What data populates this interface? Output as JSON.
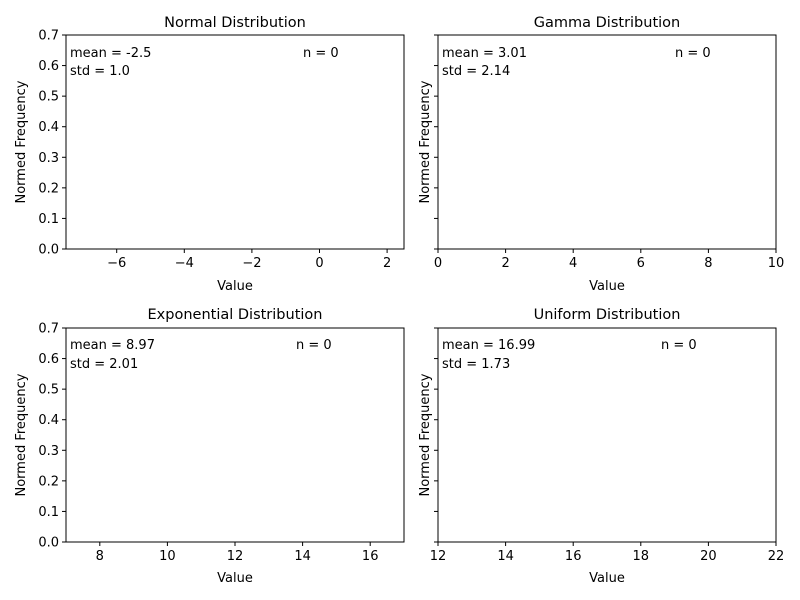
{
  "chart_data": [
    {
      "type": "histogram",
      "title": "Normal Distribution",
      "xlabel": "Value",
      "ylabel": "Normed Frequency",
      "xlim": [
        -7.5,
        2.5
      ],
      "ylim": [
        0,
        0.7
      ],
      "xticks": [
        -6,
        -4,
        -2,
        0,
        2
      ],
      "xtick_labels": [
        "−6",
        "−4",
        "−2",
        "0",
        "2"
      ],
      "yticks": [
        0,
        0.1,
        0.2,
        0.3,
        0.4,
        0.5,
        0.6,
        0.7
      ],
      "ytick_labels": [
        "0.0",
        "0.1",
        "0.2",
        "0.3",
        "0.4",
        "0.5",
        "0.6",
        "0.7"
      ],
      "show_ytick_labels": true,
      "values": [],
      "annotations": {
        "mean": "mean = -2.5",
        "std": "std = 1.0",
        "n": "n = 0"
      }
    },
    {
      "type": "histogram",
      "title": "Gamma Distribution",
      "xlabel": "Value",
      "ylabel": "Normed Frequency",
      "xlim": [
        0,
        10
      ],
      "ylim": [
        0,
        0.7
      ],
      "xticks": [
        0,
        2,
        4,
        6,
        8,
        10
      ],
      "xtick_labels": [
        "0",
        "2",
        "4",
        "6",
        "8",
        "10"
      ],
      "yticks": [
        0,
        0.1,
        0.2,
        0.3,
        0.4,
        0.5,
        0.6,
        0.7
      ],
      "ytick_labels": [],
      "show_ytick_labels": false,
      "values": [],
      "annotations": {
        "mean": "mean = 3.01",
        "std": "std = 2.14",
        "n": "n = 0"
      }
    },
    {
      "type": "histogram",
      "title": "Exponential Distribution",
      "xlabel": "Value",
      "ylabel": "Normed Frequency",
      "xlim": [
        7,
        17
      ],
      "ylim": [
        0,
        0.7
      ],
      "xticks": [
        8,
        10,
        12,
        14,
        16
      ],
      "xtick_labels": [
        "8",
        "10",
        "12",
        "14",
        "16"
      ],
      "yticks": [
        0,
        0.1,
        0.2,
        0.3,
        0.4,
        0.5,
        0.6,
        0.7
      ],
      "ytick_labels": [
        "0.0",
        "0.1",
        "0.2",
        "0.3",
        "0.4",
        "0.5",
        "0.6",
        "0.7"
      ],
      "show_ytick_labels": true,
      "values": [],
      "annotations": {
        "mean": "mean = 8.97",
        "std": "std = 2.01",
        "n": "n = 0"
      }
    },
    {
      "type": "histogram",
      "title": "Uniform Distribution",
      "xlabel": "Value",
      "ylabel": "Normed Frequency",
      "xlim": [
        12,
        22
      ],
      "ylim": [
        0,
        0.7
      ],
      "xticks": [
        12,
        14,
        16,
        18,
        20,
        22
      ],
      "xtick_labels": [
        "12",
        "14",
        "16",
        "18",
        "20",
        "22"
      ],
      "yticks": [
        0,
        0.1,
        0.2,
        0.3,
        0.4,
        0.5,
        0.6,
        0.7
      ],
      "ytick_labels": [],
      "show_ytick_labels": false,
      "values": [],
      "annotations": {
        "mean": "mean = 16.99",
        "std": "std = 1.73",
        "n": "n = 0"
      }
    }
  ]
}
